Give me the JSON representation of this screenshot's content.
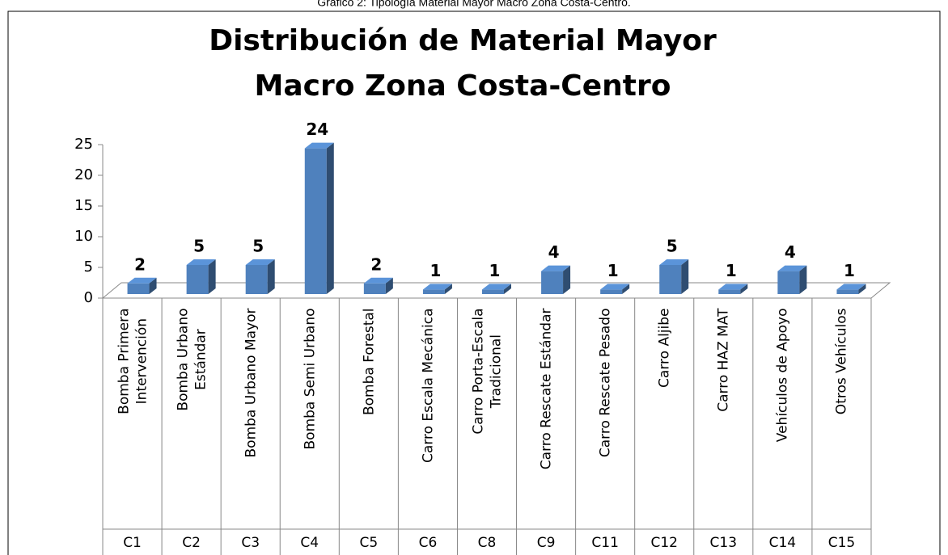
{
  "caption": "Gráfico 2: Tipología Material Mayor Macro Zona Costa-Centro.",
  "chart_data": {
    "type": "bar3d",
    "title": [
      "Distribución de Material Mayor",
      "Macro Zona Costa-Centro"
    ],
    "categories": [
      "Bomba Primera\nIntervención",
      "Bomba Urbano\nEstándar",
      "Bomba Urbano Mayor",
      "Bomba Semi Urbano",
      "Bomba Forestal",
      "Carro Escala Mecánica",
      "Carro Porta-Escala\nTradicional",
      "Carro Rescate Estándar",
      "Carro Rescate Pesado",
      "Carro Aljibe",
      "Carro HAZ MAT",
      "Vehículos de Apoyo",
      "Otros Vehículos"
    ],
    "category_codes": [
      "C1",
      "C2",
      "C3",
      "C4",
      "C5",
      "C6",
      "C8",
      "C9",
      "C11",
      "C12",
      "C13",
      "C14",
      "C15"
    ],
    "values": [
      2,
      5,
      5,
      24,
      2,
      1,
      1,
      4,
      1,
      5,
      1,
      4,
      1
    ],
    "color": "#4f81bd",
    "ylim": [
      0,
      25
    ],
    "yticks": [
      0,
      5,
      10,
      15,
      20,
      25
    ]
  }
}
